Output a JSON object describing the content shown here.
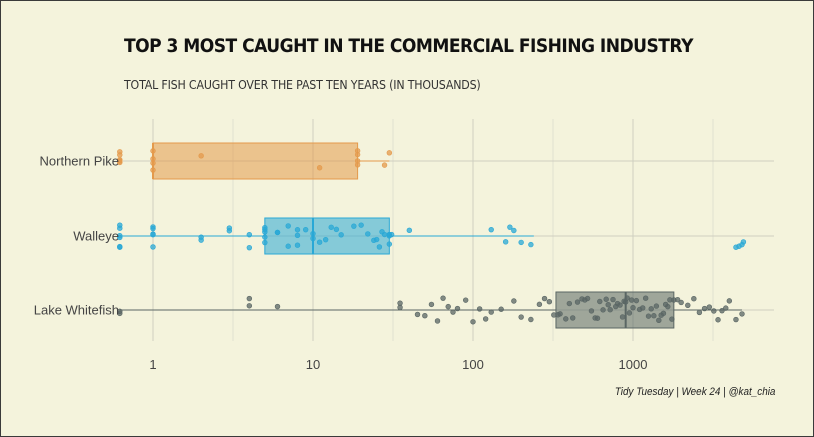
{
  "title": "TOP 3 MOST CAUGHT IN THE COMMERCIAL FISHING INDUSTRY",
  "subtitle": "TOTAL FISH CAUGHT OVER THE PAST TEN YEARS (IN THOUSANDS)",
  "caption": "Tidy Tuesday | Week 24 | @kat_chia",
  "chart_data": {
    "type": "boxplot",
    "orientation": "horizontal",
    "x_scale": "log10",
    "xlim": [
      0.62,
      7000
    ],
    "x_ticks": [
      1,
      10,
      100,
      1000
    ],
    "x_tick_labels": [
      "1",
      "10",
      "100",
      "1000"
    ],
    "grid": true,
    "legend": "none",
    "categories": [
      "Northern Pike",
      "Walleye",
      "Lake Whitefish"
    ],
    "series": [
      {
        "name": "Northern Pike",
        "color": "#e49a4c",
        "box": {
          "whisker_low": 1,
          "q1": 1,
          "median": 1,
          "q3": 19,
          "whisker_high": 30
        },
        "points": [
          0.62,
          0.62,
          0.62,
          0.62,
          0.62,
          0.62,
          1,
          1,
          1,
          1,
          2,
          11,
          19,
          19,
          19,
          19,
          28,
          30
        ]
      },
      {
        "name": "Walleye",
        "color": "#29a8d6",
        "box": {
          "whisker_low": 0.62,
          "q1": 5,
          "median": 10,
          "q3": 30,
          "whisker_high": 240
        },
        "points": [
          0.62,
          0.62,
          0.62,
          0.62,
          0.62,
          0.62,
          1,
          1,
          1,
          1,
          1,
          2,
          2,
          3,
          3,
          4,
          4,
          5,
          5,
          5,
          5,
          5,
          6,
          6,
          7,
          7,
          8,
          8,
          8,
          9,
          10,
          10,
          11,
          12,
          13,
          14,
          15,
          18,
          20,
          22,
          24,
          25,
          26,
          27,
          28,
          30,
          30,
          30,
          30,
          31,
          40,
          130,
          160,
          170,
          180,
          200,
          230,
          4400,
          4600,
          4800,
          4900
        ]
      },
      {
        "name": "Lake Whitefish",
        "color": "#5a6664",
        "box": {
          "whisker_low": 0.62,
          "q1": 330,
          "median": 900,
          "q3": 1800,
          "whisker_high": 4800
        },
        "points": [
          0.62,
          0.62,
          4,
          4,
          6,
          35,
          35,
          45,
          50,
          55,
          60,
          65,
          70,
          75,
          80,
          90,
          100,
          110,
          120,
          130,
          150,
          180,
          200,
          230,
          260,
          280,
          300,
          320,
          340,
          350,
          380,
          400,
          420,
          450,
          480,
          500,
          520,
          550,
          580,
          600,
          620,
          650,
          680,
          700,
          720,
          750,
          780,
          800,
          830,
          860,
          880,
          900,
          920,
          950,
          980,
          1000,
          1050,
          1100,
          1150,
          1200,
          1250,
          1300,
          1350,
          1400,
          1450,
          1500,
          1550,
          1600,
          1650,
          1700,
          1750,
          1800,
          1900,
          2000,
          2200,
          2400,
          2600,
          2800,
          3000,
          3200,
          3400,
          3600,
          3800,
          4000,
          4400,
          4800
        ]
      }
    ]
  }
}
